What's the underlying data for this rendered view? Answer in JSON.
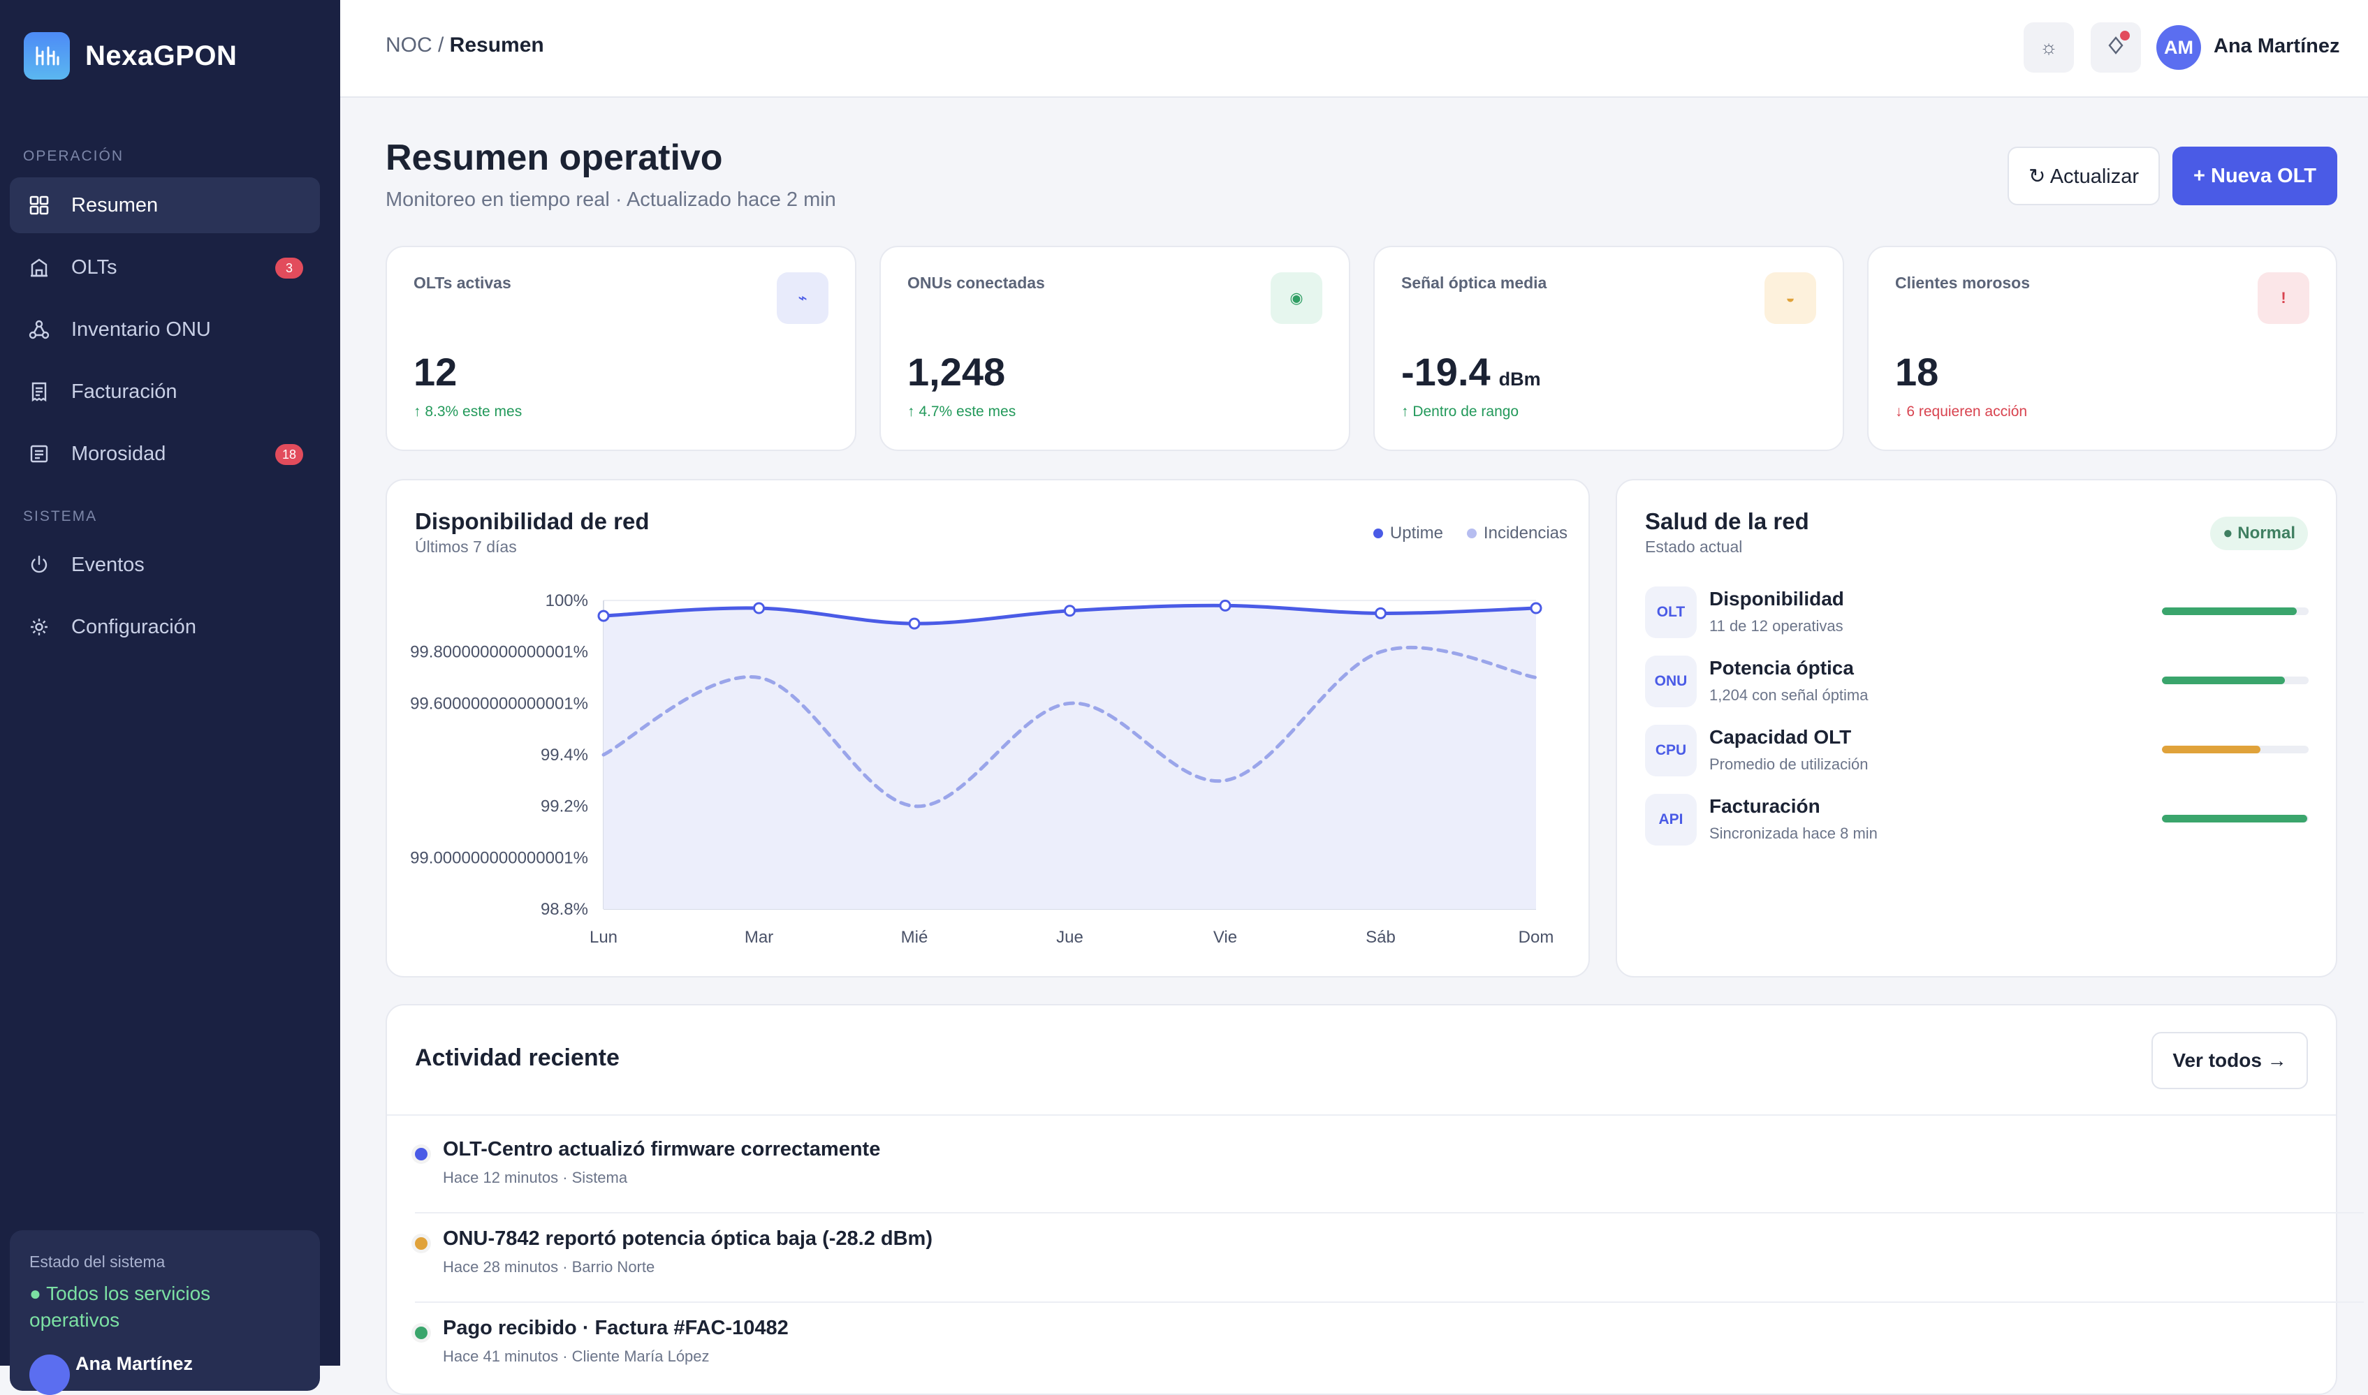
{
  "brand": {
    "name": "NexaGPON"
  },
  "sidebar": {
    "section_operacion": "OPERACIÓN",
    "section_sistema": "SISTEMA",
    "items": [
      {
        "label": "Resumen",
        "icon": "grid-icon",
        "active": true
      },
      {
        "label": "OLTs",
        "icon": "building-icon",
        "badge": "3"
      },
      {
        "label": "Inventario ONU",
        "icon": "network-icon"
      },
      {
        "label": "Facturación",
        "icon": "receipt-icon"
      },
      {
        "label": "Morosidad",
        "icon": "document-icon",
        "badge": "18"
      }
    ],
    "system_items": [
      {
        "label": "Eventos",
        "icon": "power-icon"
      },
      {
        "label": "Configuración",
        "icon": "gear-icon"
      }
    ],
    "system_status": {
      "title": "Estado del sistema",
      "status": "● Todos los servicios operativos",
      "user": "Ana Martínez"
    }
  },
  "topbar": {
    "breadcrumb_root": "NOC / ",
    "breadcrumb_current": "Resumen",
    "theme_icon": "☼",
    "user_initials": "AM",
    "user_name": "Ana Martínez"
  },
  "header": {
    "title": "Resumen operativo",
    "subtitle": "Monitoreo en tiempo real · Actualizado hace 2 min",
    "refresh_label": "↻ Actualizar",
    "new_olt_label": "+ Nueva OLT"
  },
  "stats": [
    {
      "label": "OLTs activas",
      "value": "12",
      "unit": "",
      "delta": "↑ 8.3% este mes",
      "trend": "up",
      "icon_glyph": "⌁",
      "icon_bg": "#e8ebfb",
      "icon_color": "#4a5be6"
    },
    {
      "label": "ONUs conectadas",
      "value": "1,248",
      "unit": "",
      "delta": "↑ 4.7% este mes",
      "trend": "up",
      "icon_glyph": "◉",
      "icon_bg": "#e6f6ee",
      "icon_color": "#2f9e63"
    },
    {
      "label": "Señal óptica media",
      "value": "-19.4",
      "unit": "dBm",
      "delta": "↑ Dentro de rango",
      "trend": "up",
      "icon_glyph": "◒",
      "icon_bg": "#fdf1dc",
      "icon_color": "#e0a23a"
    },
    {
      "label": "Clientes morosos",
      "value": "18",
      "unit": "",
      "delta": "↓ 6 requieren acción",
      "trend": "down",
      "icon_glyph": "!",
      "icon_bg": "#fbe6e8",
      "icon_color": "#d8434f"
    }
  ],
  "chart_card": {
    "title": "Disponibilidad de red",
    "subtitle": "Últimos 7 días",
    "legend_uptime": "Uptime",
    "legend_incidencias": "Incidencias"
  },
  "chart_data": {
    "type": "line",
    "categories": [
      "Lun",
      "Mar",
      "Mié",
      "Jue",
      "Vie",
      "Sáb",
      "Dom"
    ],
    "series": [
      {
        "name": "Uptime",
        "values": [
          99.94,
          99.97,
          99.91,
          99.96,
          99.98,
          99.95,
          99.97
        ],
        "color": "#4a5be6"
      },
      {
        "name": "Incidencias",
        "values": [
          99.4,
          99.7,
          99.2,
          99.6,
          99.3,
          99.8,
          99.7
        ],
        "color": "#9aa5ea"
      }
    ],
    "ylim": [
      98.8,
      100
    ],
    "yticks": [
      "100%",
      "99.800000000000001%",
      "99.600000000000001%",
      "99.4%",
      "99.2%",
      "99.000000000000001%",
      "98.8%"
    ],
    "grid": true,
    "legend_position": "top-right"
  },
  "health": {
    "title": "Salud de la red",
    "subtitle": "Estado actual",
    "badge": "● Normal",
    "items": [
      {
        "icon": "OLT",
        "name": "Disponibilidad",
        "desc": "11 de 12 operativas",
        "level": 0.92,
        "color": "#3aa56c"
      },
      {
        "icon": "ONU",
        "name": "Potencia óptica",
        "desc": "1,204 con señal óptima",
        "level": 0.84,
        "color": "#3aa56c"
      },
      {
        "icon": "CPU",
        "name": "Capacidad OLT",
        "desc": "Promedio de utilización",
        "level": 0.67,
        "color": "#e0a23a"
      },
      {
        "icon": "API",
        "name": "Facturación",
        "desc": "Sincronizada hace 8 min",
        "level": 0.99,
        "color": "#3aa56c"
      }
    ]
  },
  "activity": {
    "title": "Actividad reciente",
    "view_all": "Ver todos →",
    "items": [
      {
        "text": "OLT-Centro actualizó firmware correctamente",
        "meta": "Hace 12 minutos · Sistema",
        "color": "#4a5be6"
      },
      {
        "text": "ONU-7842 reportó potencia óptica baja (-28.2 dBm)",
        "meta": "Hace 28 minutos · Barrio Norte",
        "color": "#e0a23a"
      },
      {
        "text": "Pago recibido · Factura #FAC-10482",
        "meta": "Hace 41 minutos · Cliente María López",
        "color": "#3aa56c"
      }
    ]
  }
}
